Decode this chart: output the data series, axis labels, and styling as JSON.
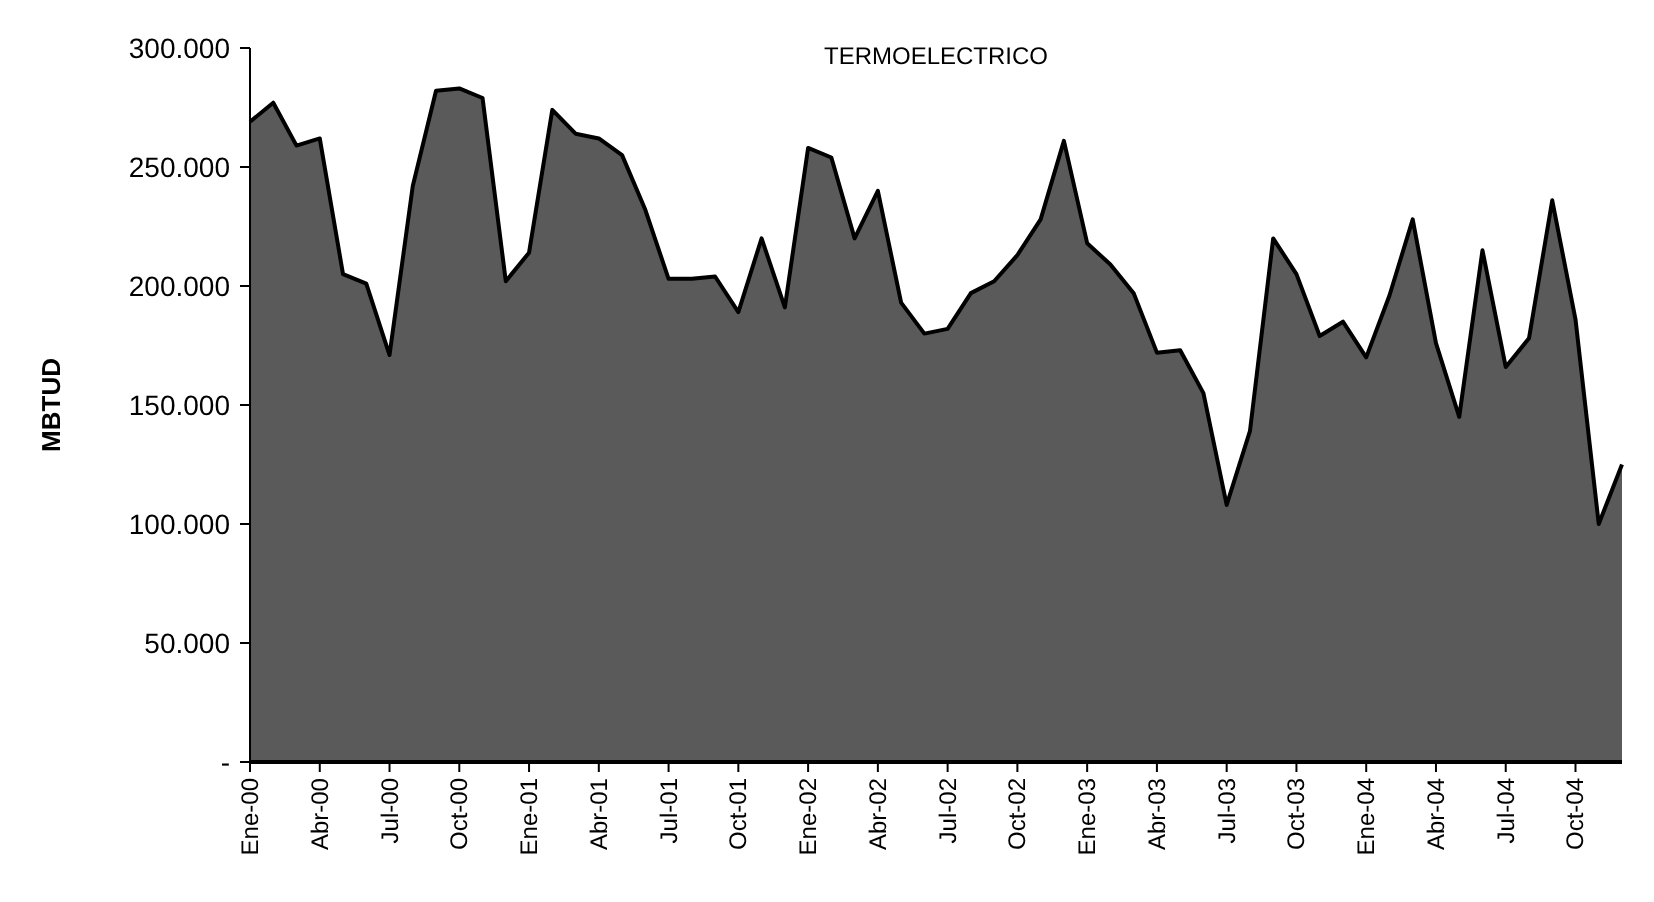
{
  "chart_data": {
    "type": "area",
    "title": "TERMOELECTRICO",
    "ylabel": "MBTUD",
    "categories": [
      "Ene-00",
      null,
      null,
      "Abr-00",
      null,
      null,
      "Jul-00",
      null,
      null,
      "Oct-00",
      null,
      null,
      "Ene-01",
      null,
      null,
      "Abr-01",
      null,
      null,
      "Jul-01",
      null,
      null,
      "Oct-01",
      null,
      null,
      "Ene-02",
      null,
      null,
      "Abr-02",
      null,
      null,
      "Jul-02",
      null,
      null,
      "Oct-02",
      null,
      null,
      "Ene-03",
      null,
      null,
      "Abr-03",
      null,
      null,
      "Jul-03",
      null,
      null,
      "Oct-03",
      null,
      null,
      "Ene-04",
      null,
      null,
      "Abr-04",
      null,
      null,
      "Jul-04",
      null,
      null,
      "Oct-04",
      null,
      null
    ],
    "series": [
      {
        "color": "#5a5a5a",
        "values": [
          269000,
          277000,
          259000,
          262000,
          205000,
          201000,
          171000,
          242000,
          282000,
          283000,
          279000,
          202000,
          214000,
          274000,
          264000,
          262000,
          255000,
          232000,
          203000,
          203000,
          204000,
          189000,
          220000,
          191000,
          258000,
          254000,
          220000,
          240000,
          193000,
          180000,
          182000,
          197000,
          202000,
          213000,
          228000,
          261000,
          218000,
          209000,
          197000,
          172000,
          173000,
          155000,
          108000,
          139000,
          220000,
          205000,
          179000,
          185000,
          170000,
          196000,
          228000,
          176000,
          145000,
          215000,
          166000,
          178000,
          236000,
          186000,
          100000,
          125000
        ]
      }
    ],
    "ylim": [
      0,
      300000
    ],
    "yticks": [
      {
        "value": 0,
        "label": "-"
      },
      {
        "value": 50000,
        "label": "50.000"
      },
      {
        "value": 100000,
        "label": "100.000"
      },
      {
        "value": 150000,
        "label": "150.000"
      },
      {
        "value": 200000,
        "label": "200.000"
      },
      {
        "value": 250000,
        "label": "250.000"
      },
      {
        "value": 300000,
        "label": "300.000"
      }
    ],
    "grid": false
  }
}
